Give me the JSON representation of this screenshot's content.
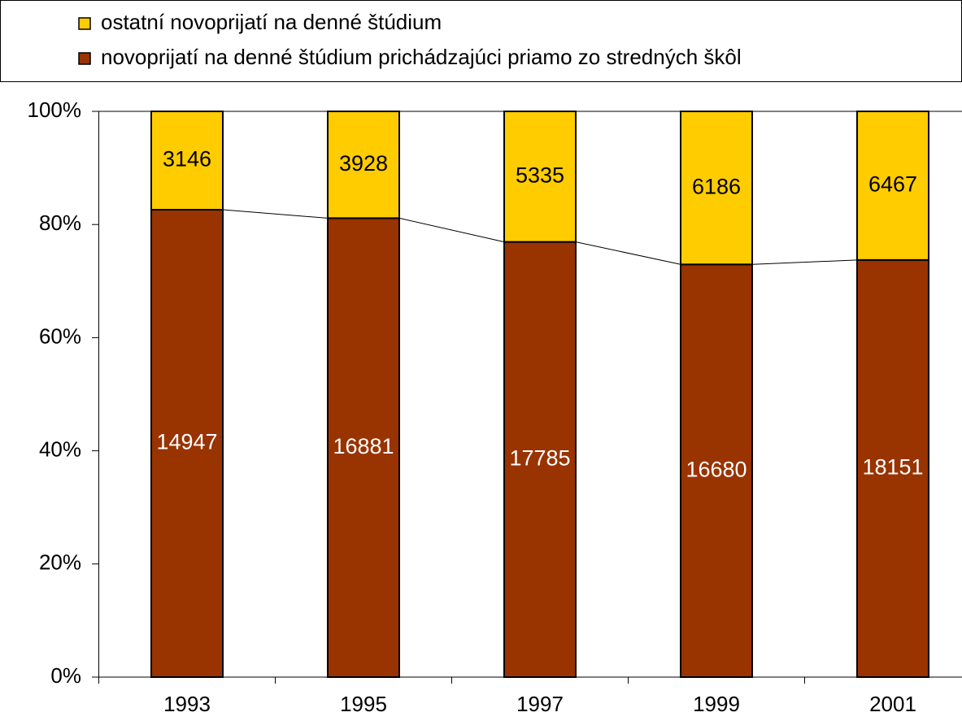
{
  "chart_data": {
    "type": "bar",
    "stack": "percent",
    "series_lines": true,
    "categories": [
      "1993",
      "1995",
      "1997",
      "1999",
      "2001"
    ],
    "series": [
      {
        "name": "novoprijatí na denné štúdium prichádzajúci priamo zo stredných škôl",
        "color": "#993300",
        "label_color": "#ffffff",
        "values": [
          14947,
          16881,
          17785,
          16680,
          18151
        ]
      },
      {
        "name": "ostatní novoprijatí na denné štúdium",
        "color": "#ffcc00",
        "label_color": "#000000",
        "values": [
          3146,
          3928,
          5335,
          6186,
          6467
        ]
      }
    ],
    "ylim": [
      0,
      100
    ],
    "yticks": [
      {
        "value": 0,
        "label": "0%"
      },
      {
        "value": 20,
        "label": "20%"
      },
      {
        "value": 40,
        "label": "40%"
      },
      {
        "value": 60,
        "label": "60%"
      },
      {
        "value": 80,
        "label": "80%"
      },
      {
        "value": 100,
        "label": "100%"
      }
    ],
    "legend": "top"
  }
}
